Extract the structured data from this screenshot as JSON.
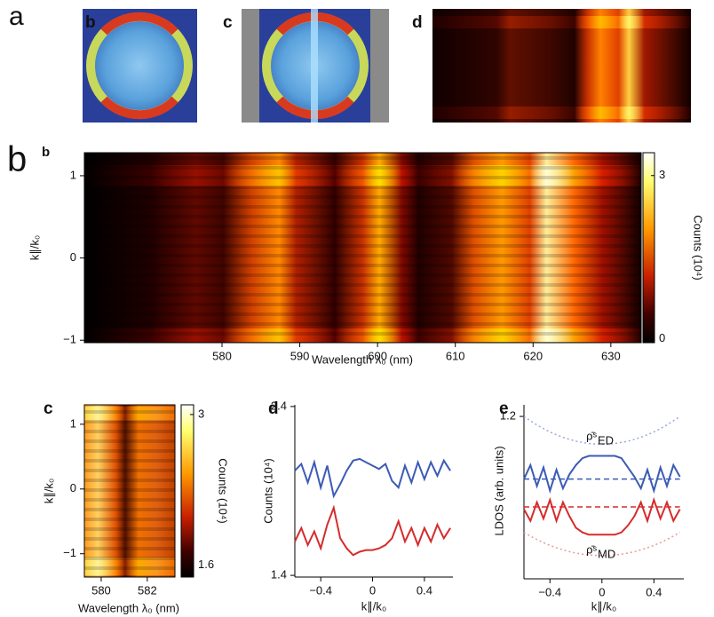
{
  "panel_labels": [
    "a",
    "b",
    "c",
    "d",
    "b",
    "b",
    "c",
    "d",
    "e"
  ],
  "chart_data": [
    {
      "type": "heatmap",
      "xlabel": "Wavelength λ₀ (nm)",
      "ylabel": "k∥/k₀",
      "xlim": [
        562.3,
        633.9
      ],
      "ylim": [
        -1.03,
        1.28
      ],
      "xticks": [
        580,
        590,
        600,
        610,
        620,
        630
      ],
      "yticks": [
        {
          "value": -1,
          "label": "−1"
        },
        0,
        1
      ],
      "colorbar": {
        "label": "Counts (10⁴)",
        "lim": [
          -0.07,
          3.42
        ],
        "ticks": [
          0,
          3
        ]
      }
    },
    {
      "type": "heatmap",
      "xlabel": "Wavelength λ₀ (nm)",
      "ylabel": "k∥/k₀",
      "xlim": [
        579.27,
        583.2
      ],
      "ylim": [
        -1.36,
        1.3
      ],
      "xticks": [
        580,
        582
      ],
      "yticks": [
        {
          "value": -1,
          "label": "−1"
        },
        0,
        1
      ],
      "colorbar": {
        "label": "Counts (10⁴)",
        "lim": [
          1.49,
          3.09
        ],
        "ticks": [
          1.6,
          3
        ]
      }
    },
    {
      "type": "line",
      "xlabel": "k∥/k₀",
      "ylabel": "Counts (10⁴)",
      "xlim": [
        -0.6,
        0.62
      ],
      "ylim": [
        1.39,
        2.41
      ],
      "xticks": [
        {
          "value": -0.4,
          "label": "−0.4"
        },
        0,
        0.4
      ],
      "yticks": [
        1.4,
        2.4
      ],
      "x": [
        -0.6,
        -0.55,
        -0.5,
        -0.45,
        -0.4,
        -0.35,
        -0.3,
        -0.25,
        -0.2,
        -0.15,
        -0.1,
        -0.05,
        0,
        0.05,
        0.1,
        0.15,
        0.2,
        0.25,
        0.3,
        0.35,
        0.4,
        0.45,
        0.5,
        0.55,
        0.6
      ],
      "series": [
        {
          "color": "#3b5bb5",
          "style": "solid",
          "values": [
            2.02,
            2.06,
            1.95,
            2.07,
            1.92,
            2.05,
            1.87,
            1.94,
            2.02,
            2.08,
            2.09,
            2.07,
            2.05,
            2.03,
            2.06,
            1.96,
            1.92,
            2.05,
            1.95,
            2.07,
            1.97,
            2.07,
            1.99,
            2.08,
            2.02
          ]
        },
        {
          "color": "#d62b2b",
          "style": "solid",
          "values": [
            1.6,
            1.68,
            1.58,
            1.66,
            1.56,
            1.7,
            1.8,
            1.62,
            1.56,
            1.52,
            1.54,
            1.55,
            1.55,
            1.56,
            1.58,
            1.62,
            1.72,
            1.6,
            1.68,
            1.58,
            1.68,
            1.6,
            1.7,
            1.62,
            1.68
          ]
        }
      ]
    },
    {
      "type": "line",
      "xlabel": "k∥/k₀",
      "ylabel": "LDOS (arb. units)",
      "xlim": [
        -0.6,
        0.63
      ],
      "ylim": [
        0.5,
        1.25
      ],
      "xticks": [
        {
          "value": -0.4,
          "label": "−0.4"
        },
        0,
        0.4
      ],
      "yticks": [
        1.2
      ],
      "x": [
        -0.6,
        -0.55,
        -0.5,
        -0.45,
        -0.4,
        -0.35,
        -0.3,
        -0.25,
        -0.2,
        -0.15,
        -0.1,
        -0.05,
        0,
        0.05,
        0.1,
        0.15,
        0.2,
        0.25,
        0.3,
        0.35,
        0.4,
        0.45,
        0.5,
        0.55,
        0.6
      ],
      "series": [
        {
          "color": "#9aa6e0",
          "style": "dotted",
          "values": [
            1.2,
            1.181,
            1.163,
            1.148,
            1.133,
            1.121,
            1.11,
            1.101,
            1.093,
            1.088,
            1.083,
            1.081,
            1.08,
            1.081,
            1.083,
            1.088,
            1.093,
            1.101,
            1.11,
            1.121,
            1.133,
            1.148,
            1.163,
            1.181,
            1.2
          ]
        },
        {
          "color": "#e79a9a",
          "style": "dotted",
          "values": [
            0.7,
            0.684,
            0.669,
            0.656,
            0.644,
            0.634,
            0.625,
            0.617,
            0.611,
            0.606,
            0.603,
            0.601,
            0.6,
            0.601,
            0.603,
            0.606,
            0.611,
            0.617,
            0.625,
            0.634,
            0.644,
            0.656,
            0.669,
            0.684,
            0.7
          ]
        },
        {
          "color": "#3b5bb5",
          "style": "dashed",
          "values": [
            0.93,
            0.93,
            0.93,
            0.93,
            0.93,
            0.93,
            0.93,
            0.93,
            0.93,
            0.93,
            0.93,
            0.93,
            0.93,
            0.93,
            0.93,
            0.93,
            0.93,
            0.93,
            0.93,
            0.93,
            0.93,
            0.93,
            0.93,
            0.93,
            0.93
          ]
        },
        {
          "color": "#d62b2b",
          "style": "dashed",
          "values": [
            0.81,
            0.81,
            0.81,
            0.81,
            0.81,
            0.81,
            0.81,
            0.81,
            0.81,
            0.81,
            0.81,
            0.81,
            0.81,
            0.81,
            0.81,
            0.81,
            0.81,
            0.81,
            0.81,
            0.81,
            0.81,
            0.81,
            0.81,
            0.81,
            0.81
          ]
        },
        {
          "color": "#3b5bb5",
          "style": "solid",
          "values": [
            0.93,
            0.99,
            0.9,
            0.98,
            0.88,
            0.97,
            0.89,
            0.95,
            0.99,
            1.02,
            1.03,
            1.03,
            1.03,
            1.03,
            1.03,
            1.02,
            0.98,
            0.94,
            0.89,
            0.97,
            0.88,
            0.98,
            0.9,
            0.99,
            0.94
          ]
        },
        {
          "color": "#d62b2b",
          "style": "solid",
          "values": [
            0.8,
            0.75,
            0.83,
            0.76,
            0.84,
            0.75,
            0.83,
            0.77,
            0.72,
            0.7,
            0.69,
            0.69,
            0.69,
            0.69,
            0.69,
            0.7,
            0.73,
            0.77,
            0.83,
            0.75,
            0.84,
            0.76,
            0.83,
            0.75,
            0.8
          ]
        }
      ],
      "annotations": [
        {
          "text": "ρ̄ˢ",
          "sub": "ED",
          "color": "#3b5bb5"
        },
        {
          "text": "ρ̄ˢ",
          "sub": "MD",
          "color": "#d62b2b"
        }
      ]
    }
  ]
}
